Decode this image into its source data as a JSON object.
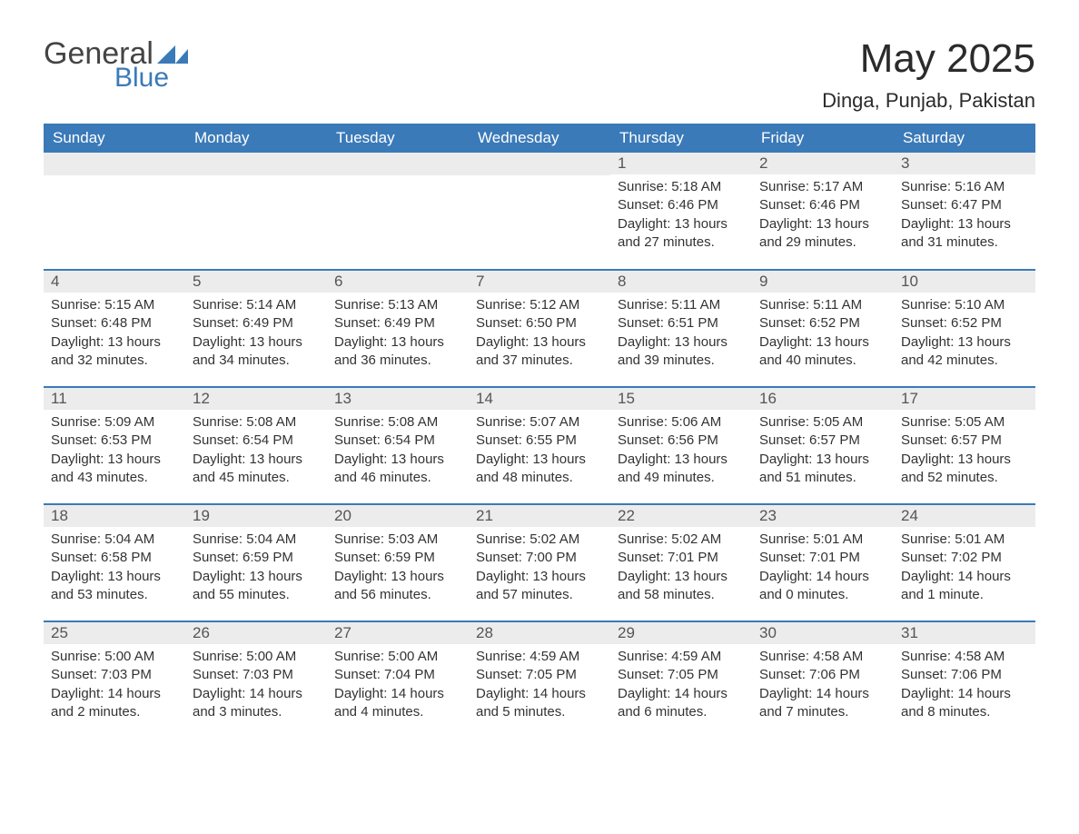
{
  "logo": {
    "part1": "General",
    "part2": "Blue",
    "triangle_color": "#3b7ab8"
  },
  "title": "May 2025",
  "location": "Dinga, Punjab, Pakistan",
  "colors": {
    "header_bg": "#3b7ab8",
    "header_text": "#ffffff",
    "daynum_bg": "#ececec",
    "text": "#333333",
    "week_divider": "#3b7ab8"
  },
  "weekdays": [
    "Sunday",
    "Monday",
    "Tuesday",
    "Wednesday",
    "Thursday",
    "Friday",
    "Saturday"
  ],
  "calendar": {
    "start_weekday_index": 4,
    "days": [
      {
        "n": 1,
        "sunrise": "5:18 AM",
        "sunset": "6:46 PM",
        "daylight": "13 hours and 27 minutes."
      },
      {
        "n": 2,
        "sunrise": "5:17 AM",
        "sunset": "6:46 PM",
        "daylight": "13 hours and 29 minutes."
      },
      {
        "n": 3,
        "sunrise": "5:16 AM",
        "sunset": "6:47 PM",
        "daylight": "13 hours and 31 minutes."
      },
      {
        "n": 4,
        "sunrise": "5:15 AM",
        "sunset": "6:48 PM",
        "daylight": "13 hours and 32 minutes."
      },
      {
        "n": 5,
        "sunrise": "5:14 AM",
        "sunset": "6:49 PM",
        "daylight": "13 hours and 34 minutes."
      },
      {
        "n": 6,
        "sunrise": "5:13 AM",
        "sunset": "6:49 PM",
        "daylight": "13 hours and 36 minutes."
      },
      {
        "n": 7,
        "sunrise": "5:12 AM",
        "sunset": "6:50 PM",
        "daylight": "13 hours and 37 minutes."
      },
      {
        "n": 8,
        "sunrise": "5:11 AM",
        "sunset": "6:51 PM",
        "daylight": "13 hours and 39 minutes."
      },
      {
        "n": 9,
        "sunrise": "5:11 AM",
        "sunset": "6:52 PM",
        "daylight": "13 hours and 40 minutes."
      },
      {
        "n": 10,
        "sunrise": "5:10 AM",
        "sunset": "6:52 PM",
        "daylight": "13 hours and 42 minutes."
      },
      {
        "n": 11,
        "sunrise": "5:09 AM",
        "sunset": "6:53 PM",
        "daylight": "13 hours and 43 minutes."
      },
      {
        "n": 12,
        "sunrise": "5:08 AM",
        "sunset": "6:54 PM",
        "daylight": "13 hours and 45 minutes."
      },
      {
        "n": 13,
        "sunrise": "5:08 AM",
        "sunset": "6:54 PM",
        "daylight": "13 hours and 46 minutes."
      },
      {
        "n": 14,
        "sunrise": "5:07 AM",
        "sunset": "6:55 PM",
        "daylight": "13 hours and 48 minutes."
      },
      {
        "n": 15,
        "sunrise": "5:06 AM",
        "sunset": "6:56 PM",
        "daylight": "13 hours and 49 minutes."
      },
      {
        "n": 16,
        "sunrise": "5:05 AM",
        "sunset": "6:57 PM",
        "daylight": "13 hours and 51 minutes."
      },
      {
        "n": 17,
        "sunrise": "5:05 AM",
        "sunset": "6:57 PM",
        "daylight": "13 hours and 52 minutes."
      },
      {
        "n": 18,
        "sunrise": "5:04 AM",
        "sunset": "6:58 PM",
        "daylight": "13 hours and 53 minutes."
      },
      {
        "n": 19,
        "sunrise": "5:04 AM",
        "sunset": "6:59 PM",
        "daylight": "13 hours and 55 minutes."
      },
      {
        "n": 20,
        "sunrise": "5:03 AM",
        "sunset": "6:59 PM",
        "daylight": "13 hours and 56 minutes."
      },
      {
        "n": 21,
        "sunrise": "5:02 AM",
        "sunset": "7:00 PM",
        "daylight": "13 hours and 57 minutes."
      },
      {
        "n": 22,
        "sunrise": "5:02 AM",
        "sunset": "7:01 PM",
        "daylight": "13 hours and 58 minutes."
      },
      {
        "n": 23,
        "sunrise": "5:01 AM",
        "sunset": "7:01 PM",
        "daylight": "14 hours and 0 minutes."
      },
      {
        "n": 24,
        "sunrise": "5:01 AM",
        "sunset": "7:02 PM",
        "daylight": "14 hours and 1 minute."
      },
      {
        "n": 25,
        "sunrise": "5:00 AM",
        "sunset": "7:03 PM",
        "daylight": "14 hours and 2 minutes."
      },
      {
        "n": 26,
        "sunrise": "5:00 AM",
        "sunset": "7:03 PM",
        "daylight": "14 hours and 3 minutes."
      },
      {
        "n": 27,
        "sunrise": "5:00 AM",
        "sunset": "7:04 PM",
        "daylight": "14 hours and 4 minutes."
      },
      {
        "n": 28,
        "sunrise": "4:59 AM",
        "sunset": "7:05 PM",
        "daylight": "14 hours and 5 minutes."
      },
      {
        "n": 29,
        "sunrise": "4:59 AM",
        "sunset": "7:05 PM",
        "daylight": "14 hours and 6 minutes."
      },
      {
        "n": 30,
        "sunrise": "4:58 AM",
        "sunset": "7:06 PM",
        "daylight": "14 hours and 7 minutes."
      },
      {
        "n": 31,
        "sunrise": "4:58 AM",
        "sunset": "7:06 PM",
        "daylight": "14 hours and 8 minutes."
      }
    ]
  },
  "labels": {
    "sunrise": "Sunrise: ",
    "sunset": "Sunset: ",
    "daylight": "Daylight: "
  }
}
